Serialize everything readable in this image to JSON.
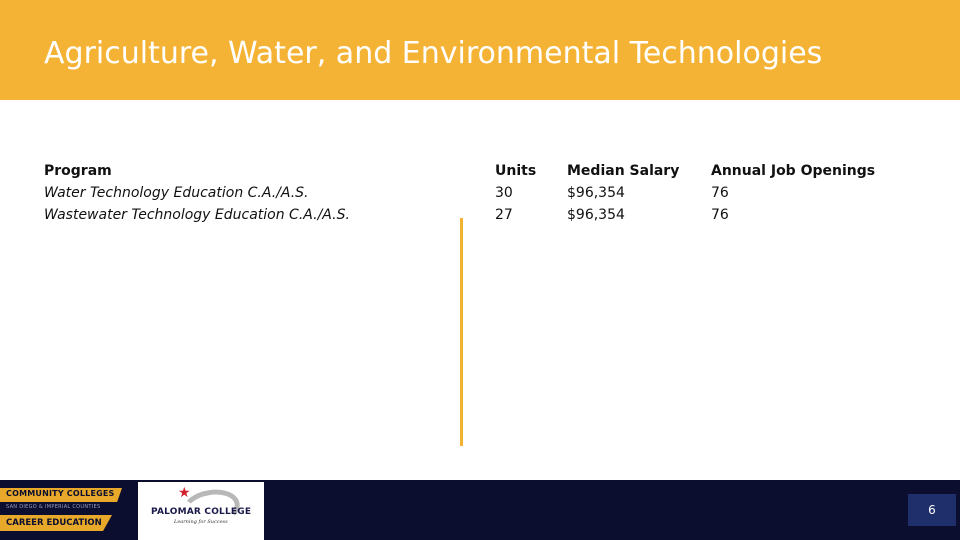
{
  "header": {
    "title": "Agriculture, Water, and Environmental Technologies",
    "bg_color": "#f5b335"
  },
  "table": {
    "columns": [
      "Program",
      "Units",
      "Median Salary",
      "Annual Job Openings"
    ],
    "rows": [
      {
        "program": "Water Technology Education C.A./A.S.",
        "units": "30",
        "salary": "$96,354",
        "openings": "76"
      },
      {
        "program": "Wastewater Technology Education C.A./A.S.",
        "units": "27",
        "salary": "$96,354",
        "openings": "76"
      }
    ]
  },
  "footer": {
    "bg_color": "#0b0e2e",
    "cc_logo": {
      "line1": "COMMUNITY COLLEGES",
      "line2": "SAN DIEGO & IMPERIAL COUNTIES",
      "line3": "CAREER EDUCATION"
    },
    "palomar_logo": {
      "name": "PALOMAR COLLEGE",
      "tagline": "Learning for Success"
    },
    "page_number": "6"
  }
}
